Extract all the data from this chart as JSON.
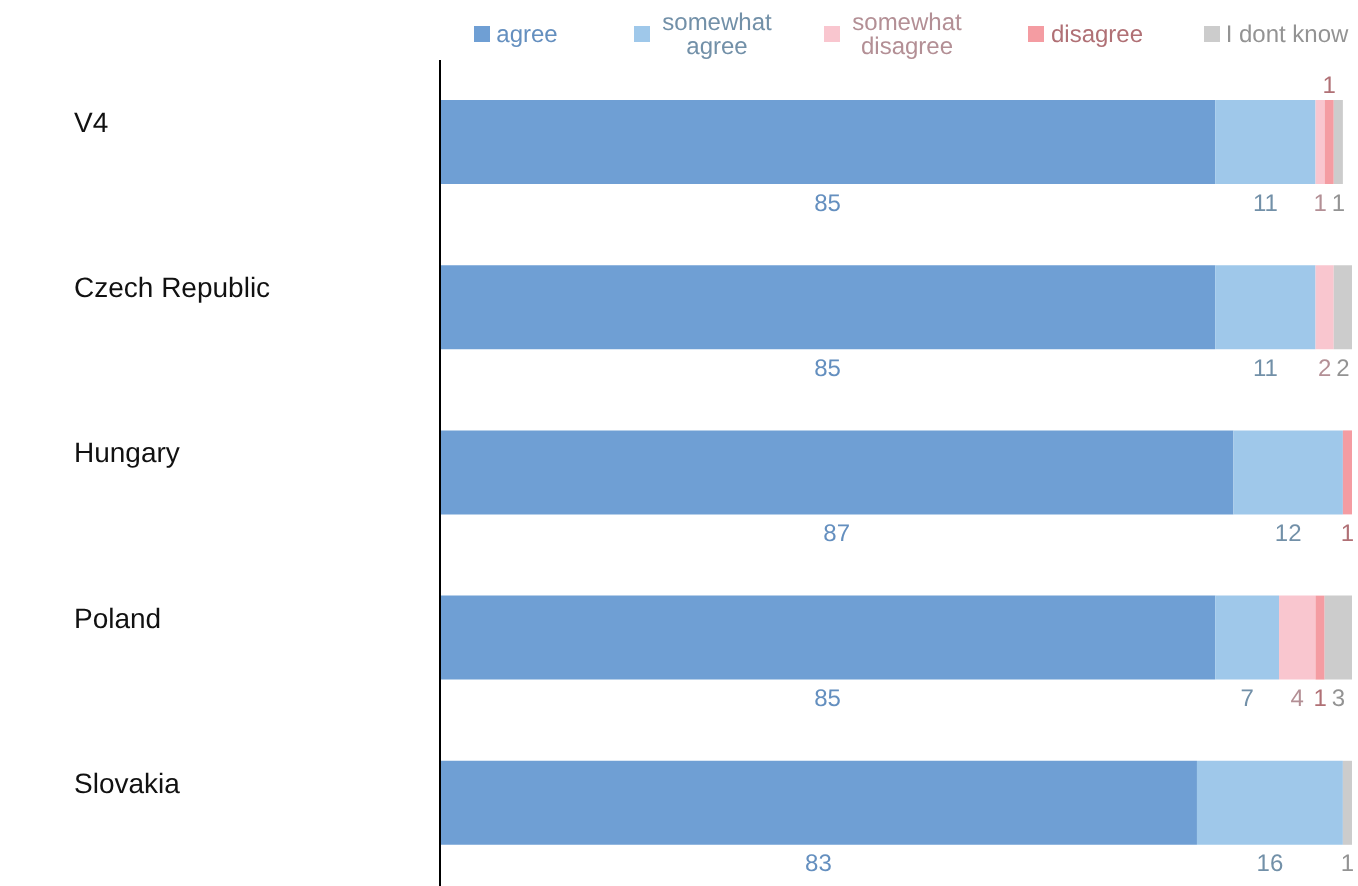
{
  "chart_data": {
    "type": "bar",
    "orientation": "horizontal",
    "stacked": true,
    "data_labels": true,
    "legend": "top",
    "categories": [
      "V4",
      "Czech Republic",
      "Hungary",
      "Poland",
      "Slovakia"
    ],
    "series": [
      {
        "name": "agree",
        "color": "#6f9fd4",
        "values": [
          85,
          85,
          87,
          85,
          83
        ]
      },
      {
        "name": "somewhat agree",
        "color": "#9fc8ea",
        "values": [
          11,
          11,
          12,
          7,
          16
        ]
      },
      {
        "name": "somewhat disagree",
        "color": "#f9c6cf",
        "values": [
          1,
          2,
          null,
          4,
          null
        ]
      },
      {
        "name": "disagree",
        "color": "#f49ca2",
        "values": [
          1,
          null,
          1,
          1,
          null
        ]
      },
      {
        "name": "I dont know",
        "color": "#cccccc",
        "values": [
          1,
          2,
          null,
          3,
          1
        ]
      }
    ]
  }
}
